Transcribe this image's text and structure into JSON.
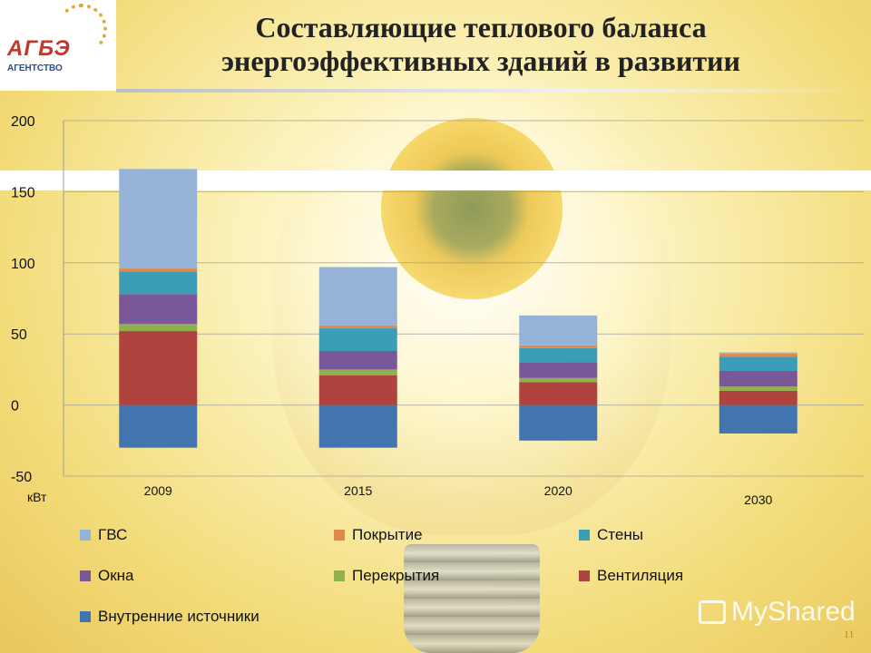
{
  "title_line1": "Составляющие теплового баланса",
  "title_line2": "энергоэффективных зданий в развитии",
  "logo": {
    "main": "АГБЭ",
    "sub": "АГЕНТСТВО"
  },
  "unit_label": "кВт",
  "page_number": "11",
  "watermark": "MyShared",
  "colors": {
    "ГВС": "#95b3d7",
    "Покрытие": "#e0884a",
    "Стены": "#3c9db8",
    "Окна": "#7a5799",
    "Перекрытия": "#8fb04e",
    "Вентиляция": "#b0433e",
    "Внутренние источники": "#4275b0"
  },
  "chart_data": {
    "type": "bar",
    "stacked": true,
    "categories": [
      "2009",
      "2015",
      "2020",
      "2030"
    ],
    "ylim": [
      -50,
      200
    ],
    "yticks": [
      -50,
      0,
      50,
      100,
      150,
      200
    ],
    "grid": true,
    "legend_position": "bottom",
    "series": [
      {
        "name": "Внутренние источники",
        "values": [
          -30,
          -30,
          -25,
          -20
        ]
      },
      {
        "name": "Вентиляция",
        "values": [
          52,
          21,
          16,
          10
        ]
      },
      {
        "name": "Перекрытия",
        "values": [
          5,
          4,
          3,
          3
        ]
      },
      {
        "name": "Окна",
        "values": [
          21,
          13,
          11,
          11
        ]
      },
      {
        "name": "Стены",
        "values": [
          16,
          16,
          10,
          10
        ]
      },
      {
        "name": "Покрытие",
        "values": [
          2,
          2,
          2,
          2
        ]
      },
      {
        "name": "ГВС",
        "values": [
          70,
          41,
          21,
          1
        ]
      }
    ]
  },
  "legend_order": [
    "ГВС",
    "Покрытие",
    "Стены",
    "Окна",
    "Перекрытия",
    "Вентиляция",
    "Внутренние источники"
  ]
}
